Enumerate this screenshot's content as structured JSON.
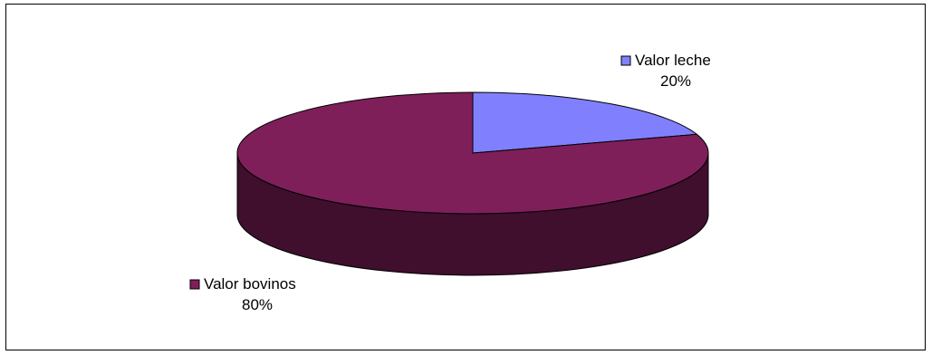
{
  "chart_data": {
    "type": "pie",
    "style": "3d",
    "title": "",
    "legend": "none",
    "slices": [
      {
        "label": "Valor leche",
        "value": 20,
        "percent_label": "20%",
        "color": "#8080ff",
        "side_color": "#4d4d99"
      },
      {
        "label": "Valor bovinos",
        "value": 80,
        "percent_label": "80%",
        "color": "#7f1f5a",
        "side_color": "#3f0f2d"
      }
    ]
  }
}
